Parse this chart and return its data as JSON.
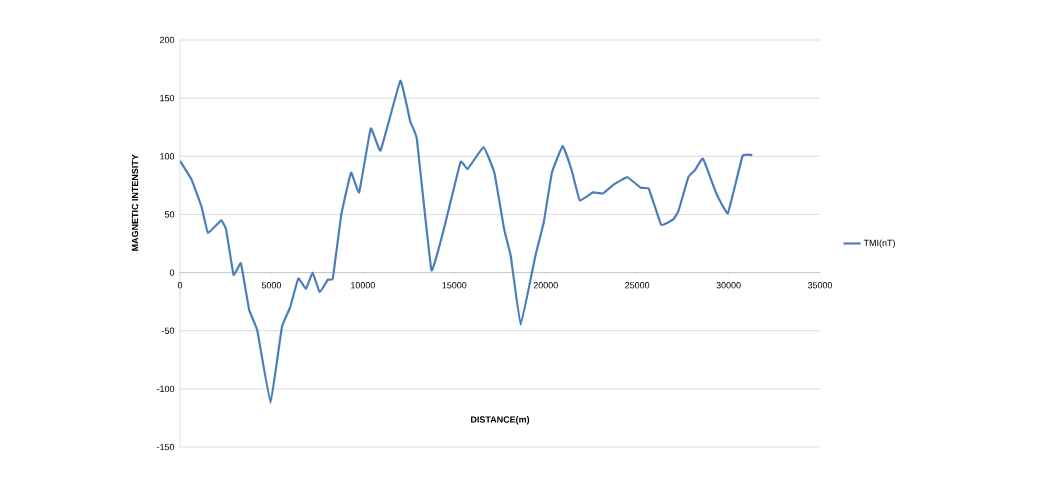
{
  "chart_data": {
    "type": "line",
    "xlabel": "DISTANCE(m)",
    "ylabel": "MAGNETIC INTENSITY",
    "xlim": [
      0,
      35000
    ],
    "xticks": [
      0,
      5000,
      10000,
      15000,
      20000,
      25000,
      30000,
      35000
    ],
    "ylim": [
      -150,
      200
    ],
    "yticks": [
      -150,
      -100,
      -50,
      0,
      50,
      100,
      150,
      200
    ],
    "grid": "y",
    "legend": "right",
    "marker": "none",
    "line_style": "solid",
    "series": [
      {
        "name": "TMI(nT)",
        "color": "#4a7ebb",
        "x": [
          0,
          630,
          1170,
          1530,
          2250,
          2520,
          2930,
          3330,
          3780,
          4230,
          4950,
          5570,
          6020,
          6470,
          6890,
          7250,
          7640,
          8090,
          8360,
          8810,
          9350,
          9800,
          10430,
          10970,
          12050,
          12590,
          12950,
          13750,
          14470,
          15340,
          15730,
          16600,
          17190,
          17730,
          18090,
          18630,
          19430,
          19890,
          20340,
          20930,
          21420,
          21860,
          22580,
          23120,
          23750,
          24470,
          25190,
          25640,
          26320,
          26990,
          27260,
          27800,
          28160,
          28600,
          29330,
          29960,
          30760,
          31300
        ],
        "values": [
          96,
          80,
          57,
          34,
          45,
          37,
          -2,
          8,
          -32,
          -50,
          -112,
          -47,
          -30,
          -5,
          -14,
          0,
          -17,
          -6,
          -5,
          49,
          86,
          69,
          124,
          105,
          165,
          130,
          115,
          2,
          40,
          95,
          89,
          108,
          86,
          37,
          14,
          -45,
          14,
          43,
          86,
          109,
          88,
          62,
          69,
          68,
          76,
          82,
          73,
          72,
          41,
          46,
          53,
          82,
          88,
          98,
          68,
          51,
          100,
          101
        ]
      }
    ]
  }
}
